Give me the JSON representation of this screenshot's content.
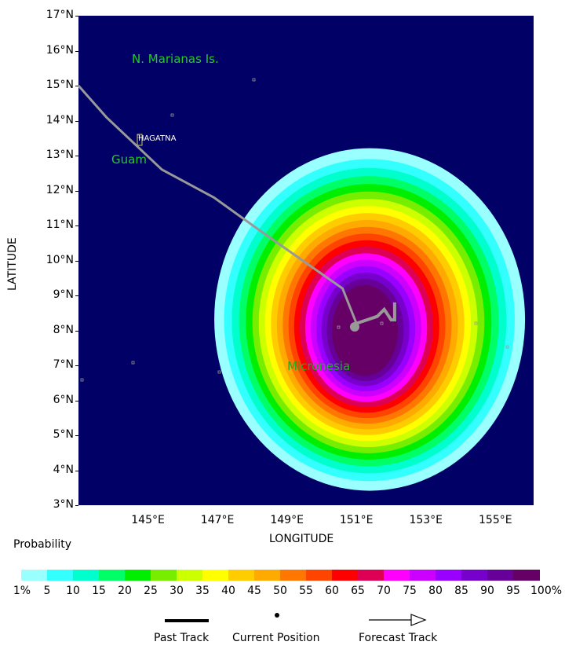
{
  "map": {
    "y_axis_title": "LATITUDE",
    "x_axis_title": "LONGITUDE",
    "lat_ticks": [
      "17°N",
      "16°N",
      "15°N",
      "14°N",
      "13°N",
      "12°N",
      "11°N",
      "10°N",
      "9°N",
      "8°N",
      "7°N",
      "6°N",
      "5°N",
      "4°N",
      "3°N"
    ],
    "lon_ticks": [
      "145°E",
      "147°E",
      "149°E",
      "151°E",
      "153°E",
      "155°E"
    ],
    "place_labels": {
      "marianas": "N. Marianas Is.",
      "guam": "Guam",
      "hagatna": "HAGATNA",
      "micronesia": "Micronesia"
    },
    "colors": {
      "ocean": "#000066",
      "track": "#999999",
      "place_label": "#22cc22"
    },
    "track": {
      "past_lonlat": [
        [
          143.0,
          15.0
        ],
        [
          143.8,
          14.1
        ],
        [
          145.4,
          12.6
        ],
        [
          146.9,
          11.8
        ],
        [
          148.3,
          10.8
        ],
        [
          150.6,
          9.2
        ],
        [
          151.0,
          8.2
        ]
      ],
      "current_lonlat": [
        150.95,
        8.1
      ],
      "forecast_lonlat": [
        [
          151.0,
          8.2
        ],
        [
          151.6,
          8.4
        ],
        [
          151.8,
          8.6
        ],
        [
          152.0,
          8.3
        ],
        [
          152.1,
          8.3
        ],
        [
          152.1,
          8.8
        ]
      ]
    },
    "prob_center_lonlat": [
      151.2,
      8.2
    ]
  },
  "legend": {
    "title": "Probability",
    "colors": [
      "#99ffff",
      "#33ffff",
      "#00ffcc",
      "#00ff66",
      "#00ee00",
      "#77ee00",
      "#ccff00",
      "#ffff00",
      "#ffcc00",
      "#ffaa00",
      "#ff7700",
      "#ff4400",
      "#ff0000",
      "#dd0055",
      "#ff00ff",
      "#cc00ff",
      "#9900ff",
      "#7700cc",
      "#660099",
      "#660066"
    ],
    "labels": [
      "1%",
      "5",
      "10",
      "15",
      "20",
      "25",
      "30",
      "35",
      "40",
      "45",
      "50",
      "55",
      "60",
      "65",
      "70",
      "75",
      "80",
      "85",
      "90",
      "95",
      "100%"
    ]
  },
  "key": {
    "past": "Past Track",
    "current": "Current Position",
    "forecast": "Forecast Track"
  }
}
